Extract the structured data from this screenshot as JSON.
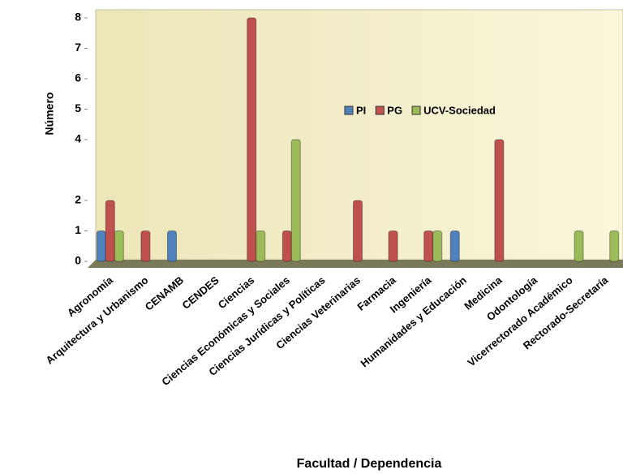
{
  "chart_data": {
    "type": "bar",
    "categories": [
      "Agronomía",
      "Arquitectura y Urbanismo",
      "CENAMB",
      "CENDES",
      "Ciencias",
      "Ciencias Económicas y Sociales",
      "Ciencias Jurídicas y Políticas",
      "Ciencias Veterinarias",
      "Farmacia",
      "Ingeniería",
      "Humanidades y Educación",
      "Medicina",
      "Odontología",
      "Vicerrectorado Académico",
      "Rectorado-Secretaría"
    ],
    "series": [
      {
        "name": "PI",
        "color": "#4f81bd",
        "values": [
          1,
          0,
          1,
          0,
          0,
          0,
          0,
          0,
          0,
          0,
          1,
          0,
          0,
          0,
          0
        ]
      },
      {
        "name": "PG",
        "color": "#c0504d",
        "values": [
          2,
          1,
          0,
          0,
          8,
          1,
          0,
          2,
          1,
          1,
          0,
          4,
          0,
          0,
          0
        ]
      },
      {
        "name": "UCV-Sociedad",
        "color": "#9bbb59",
        "values": [
          1,
          0,
          0,
          0,
          1,
          4,
          0,
          0,
          0,
          1,
          0,
          0,
          0,
          1,
          1
        ]
      }
    ],
    "ylim": [
      0,
      8
    ],
    "yticks": [
      0,
      1,
      2,
      4,
      5,
      6,
      7,
      8
    ],
    "ylabel": "Número",
    "xlabel": "Facultad / Dependencia"
  }
}
